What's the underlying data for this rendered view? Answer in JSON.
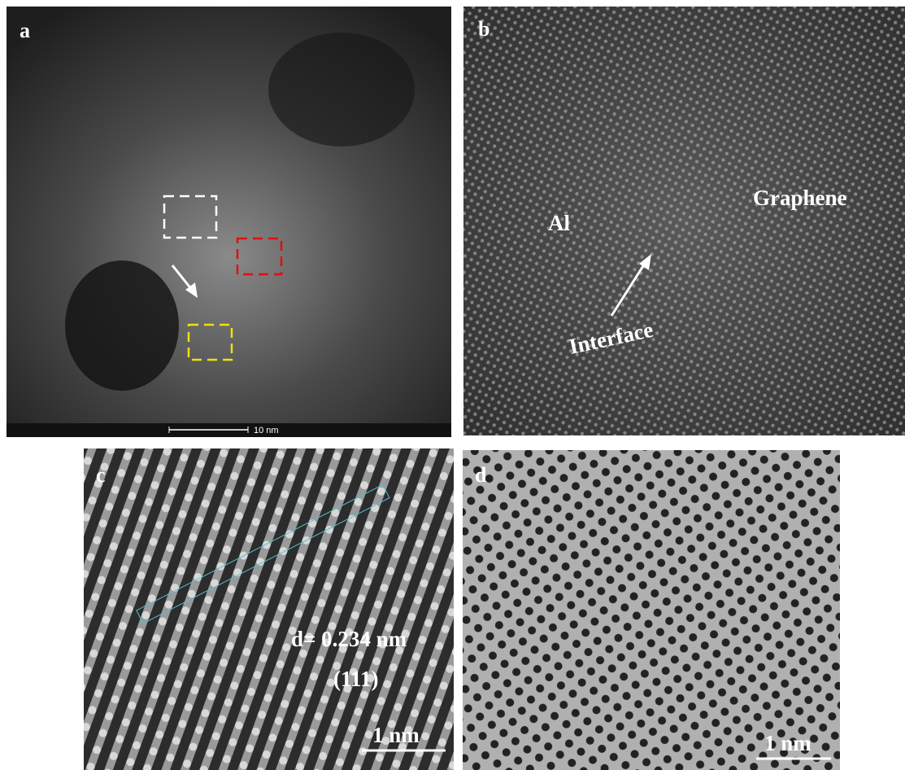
{
  "panels": [
    {
      "label": "a",
      "scale_bar": "10 nm"
    },
    {
      "label": "b",
      "annotations": [
        "Al",
        "Graphene",
        "Interface"
      ]
    },
    {
      "label": "c",
      "annotations": [
        "d= 0.234 nm",
        "(111)"
      ],
      "scale_bar": "1 nm"
    },
    {
      "label": "d",
      "scale_bar": "1 nm"
    }
  ]
}
